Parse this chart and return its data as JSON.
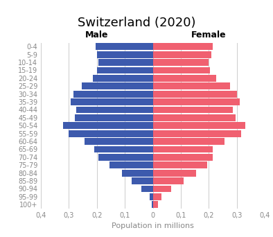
{
  "title": "Switzerland (2020)",
  "xlabel": "Population in millions",
  "male_label": "Male",
  "female_label": "Female",
  "age_groups": [
    "100+",
    "95-99",
    "90-94",
    "85-89",
    "80-84",
    "75-79",
    "70-74",
    "65-69",
    "60-64",
    "55-59",
    "50-54",
    "45-49",
    "40-44",
    "35-39",
    "30-34",
    "25-29",
    "20-24",
    "15-19",
    "10-14",
    "5-9",
    "0-4"
  ],
  "male": [
    0.005,
    0.012,
    0.04,
    0.075,
    0.11,
    0.155,
    0.195,
    0.21,
    0.245,
    0.3,
    0.32,
    0.28,
    0.275,
    0.295,
    0.285,
    0.255,
    0.215,
    0.2,
    0.195,
    0.2,
    0.205
  ],
  "female": [
    0.018,
    0.03,
    0.065,
    0.11,
    0.155,
    0.195,
    0.215,
    0.215,
    0.255,
    0.315,
    0.33,
    0.295,
    0.285,
    0.31,
    0.3,
    0.275,
    0.225,
    0.205,
    0.2,
    0.21,
    0.215
  ],
  "male_color": "#3d5aad",
  "female_color": "#f06070",
  "xlim": 0.4,
  "background_color": "#ffffff",
  "grid_color": "#cccccc",
  "tick_color": "#888888",
  "title_fontsize": 13,
  "label_fontsize": 8,
  "tick_fontsize": 7,
  "gender_label_fontsize": 9
}
